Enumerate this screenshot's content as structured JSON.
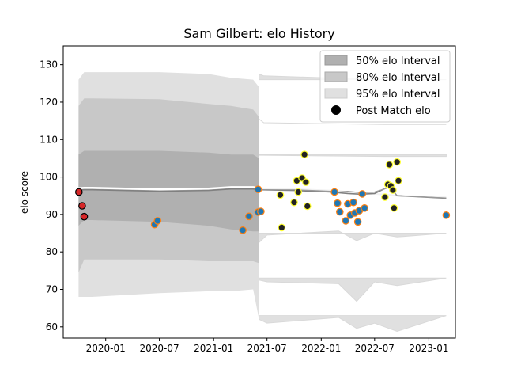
{
  "chart_data": {
    "type": "scatter",
    "title": "Sam Gilbert: elo History",
    "xlabel": "",
    "ylabel": "elo score",
    "xlim": [
      "2019-08-10",
      "2023-04-01"
    ],
    "ylim": [
      57,
      135
    ],
    "x_ticks": [
      "2020-01",
      "2020-07",
      "2021-01",
      "2021-07",
      "2022-01",
      "2022-07",
      "2023-01"
    ],
    "y_ticks": [
      60,
      70,
      80,
      90,
      100,
      110,
      120,
      130
    ],
    "grid": false,
    "legend": {
      "placement": "top-right",
      "entries": [
        "50% elo Interval",
        "80% elo Interval",
        "95% elo Interval",
        "Post Match elo"
      ]
    },
    "colors": {
      "band50": "#b0b0b0",
      "band80": "#c8c8c8",
      "band95": "#e0e0e0",
      "dark_line": "#808080",
      "white_line": "#ffffff",
      "early_fill": "#d62728",
      "blue_fill": "#1f77b4",
      "orange_edge": "#ff7f0e",
      "yellow_edge": "#ffff33",
      "black_fill": "#222222"
    },
    "early_period": {
      "x": [
        "2019-10-01",
        "2021-06-04"
      ],
      "p2_5": [
        68,
        68,
        68,
        69,
        69.5,
        69.5,
        70,
        62
      ],
      "p10": [
        74.5,
        78,
        78,
        78,
        77.5,
        77.5,
        77.5,
        77
      ],
      "p25": [
        87,
        88.5,
        88.5,
        88,
        87,
        86,
        85.5,
        85.5
      ],
      "mean": [
        96.7,
        96.8,
        96.8,
        96.4,
        96.6,
        97,
        97,
        96.8
      ],
      "p75": [
        106,
        107,
        107,
        107,
        106.5,
        106,
        106,
        105
      ],
      "p90": [
        119,
        121,
        121,
        120.8,
        119.5,
        119,
        118,
        116
      ],
      "p97_5": [
        126,
        128,
        128,
        128,
        127.5,
        126.5,
        126,
        124
      ],
      "dates": [
        "2019-10-01",
        "2019-10-20",
        "2019-11-15",
        "2020-07-01",
        "2020-12-15",
        "2021-03-01",
        "2021-05-15",
        "2021-06-04"
      ]
    },
    "late_lines": {
      "dates": [
        "2021-06-04",
        "2021-10-01",
        "2021-12-01",
        "2022-02-01",
        "2022-03-01",
        "2022-04-01",
        "2022-05-15",
        "2022-07-01",
        "2022-08-20",
        "2022-09-15",
        "2023-03-01"
      ],
      "mean": [
        96.6,
        96.4,
        96.2,
        96.0,
        95.8,
        95.6,
        95.4,
        95.6,
        97.5,
        95.0,
        94.3
      ],
      "p75": [
        96.6,
        96.6,
        96.4,
        96.2,
        96.0,
        96.2,
        95.8,
        96.0,
        97.2,
        95.0,
        94.4
      ],
      "white": [
        97.0,
        96.8,
        96.6,
        96.4,
        96.3,
        96.0,
        95.8,
        95.5,
        95.2,
        95.0,
        94.6
      ]
    },
    "late_bands": [
      {
        "label": "upper-95",
        "dates": [
          "2021-06-04",
          "2021-06-20",
          "2022-08-01",
          "2023-03-01"
        ],
        "top": [
          127.5,
          127,
          126,
          126
        ],
        "bottom": [
          126,
          126,
          126,
          126
        ]
      },
      {
        "label": "upper-80",
        "dates": [
          "2021-06-04",
          "2021-06-20",
          "2022-08-01",
          "2023-03-01"
        ],
        "top": [
          115.5,
          114.5,
          114,
          114
        ],
        "bottom": [
          115.5,
          114.5,
          114,
          114
        ]
      },
      {
        "label": "upper-50",
        "dates": [
          "2021-06-04",
          "2021-06-20",
          "2022-08-01",
          "2023-03-01"
        ],
        "top": [
          106,
          106,
          106,
          106
        ],
        "bottom": [
          105.8,
          105.8,
          105.5,
          105.5
        ]
      }
    ],
    "points": [
      {
        "x": "2019-10-02",
        "y": 96,
        "style": "early"
      },
      {
        "x": "2019-10-13",
        "y": 92.3,
        "style": "early"
      },
      {
        "x": "2019-10-20",
        "y": 89.4,
        "style": "early"
      },
      {
        "x": "2020-06-15",
        "y": 87.3,
        "style": "blue"
      },
      {
        "x": "2020-06-25",
        "y": 88.3,
        "style": "blue"
      },
      {
        "x": "2021-04-10",
        "y": 85.8,
        "style": "blue"
      },
      {
        "x": "2021-05-01",
        "y": 89.5,
        "style": "blue"
      },
      {
        "x": "2021-06-01",
        "y": 90.6,
        "style": "blue"
      },
      {
        "x": "2021-06-10",
        "y": 90.8,
        "style": "blue"
      },
      {
        "x": "2021-06-01",
        "y": 96.7,
        "style": "blue"
      },
      {
        "x": "2021-08-20",
        "y": 86.5,
        "style": "black"
      },
      {
        "x": "2021-08-15",
        "y": 95.2,
        "style": "black"
      },
      {
        "x": "2021-10-01",
        "y": 93.2,
        "style": "black"
      },
      {
        "x": "2021-10-10",
        "y": 99,
        "style": "black"
      },
      {
        "x": "2021-10-15",
        "y": 96,
        "style": "black"
      },
      {
        "x": "2021-10-28",
        "y": 99.7,
        "style": "black"
      },
      {
        "x": "2021-11-05",
        "y": 106,
        "style": "black"
      },
      {
        "x": "2021-11-10",
        "y": 98.6,
        "style": "black"
      },
      {
        "x": "2021-11-15",
        "y": 92.2,
        "style": "black"
      },
      {
        "x": "2022-02-15",
        "y": 96,
        "style": "blue"
      },
      {
        "x": "2022-02-25",
        "y": 93,
        "style": "blue"
      },
      {
        "x": "2022-03-05",
        "y": 90.7,
        "style": "blue"
      },
      {
        "x": "2022-03-25",
        "y": 88.3,
        "style": "blue"
      },
      {
        "x": "2022-04-01",
        "y": 92.8,
        "style": "blue"
      },
      {
        "x": "2022-04-10",
        "y": 89.8,
        "style": "blue"
      },
      {
        "x": "2022-04-20",
        "y": 93.2,
        "style": "blue"
      },
      {
        "x": "2022-04-25",
        "y": 90.4,
        "style": "blue"
      },
      {
        "x": "2022-05-05",
        "y": 88,
        "style": "blue"
      },
      {
        "x": "2022-05-10",
        "y": 91,
        "style": "blue"
      },
      {
        "x": "2022-05-20",
        "y": 95.5,
        "style": "blue"
      },
      {
        "x": "2022-05-28",
        "y": 91.7,
        "style": "blue"
      },
      {
        "x": "2022-08-05",
        "y": 94.6,
        "style": "black"
      },
      {
        "x": "2022-08-15",
        "y": 98,
        "style": "black"
      },
      {
        "x": "2022-08-20",
        "y": 103.3,
        "style": "black"
      },
      {
        "x": "2022-08-25",
        "y": 97.6,
        "style": "black"
      },
      {
        "x": "2022-09-01",
        "y": 96.5,
        "style": "black"
      },
      {
        "x": "2022-09-05",
        "y": 91.7,
        "style": "black"
      },
      {
        "x": "2022-09-15",
        "y": 104,
        "style": "black"
      },
      {
        "x": "2022-09-20",
        "y": 99,
        "style": "black"
      },
      {
        "x": "2023-03-01",
        "y": 89.8,
        "style": "blue"
      }
    ]
  }
}
